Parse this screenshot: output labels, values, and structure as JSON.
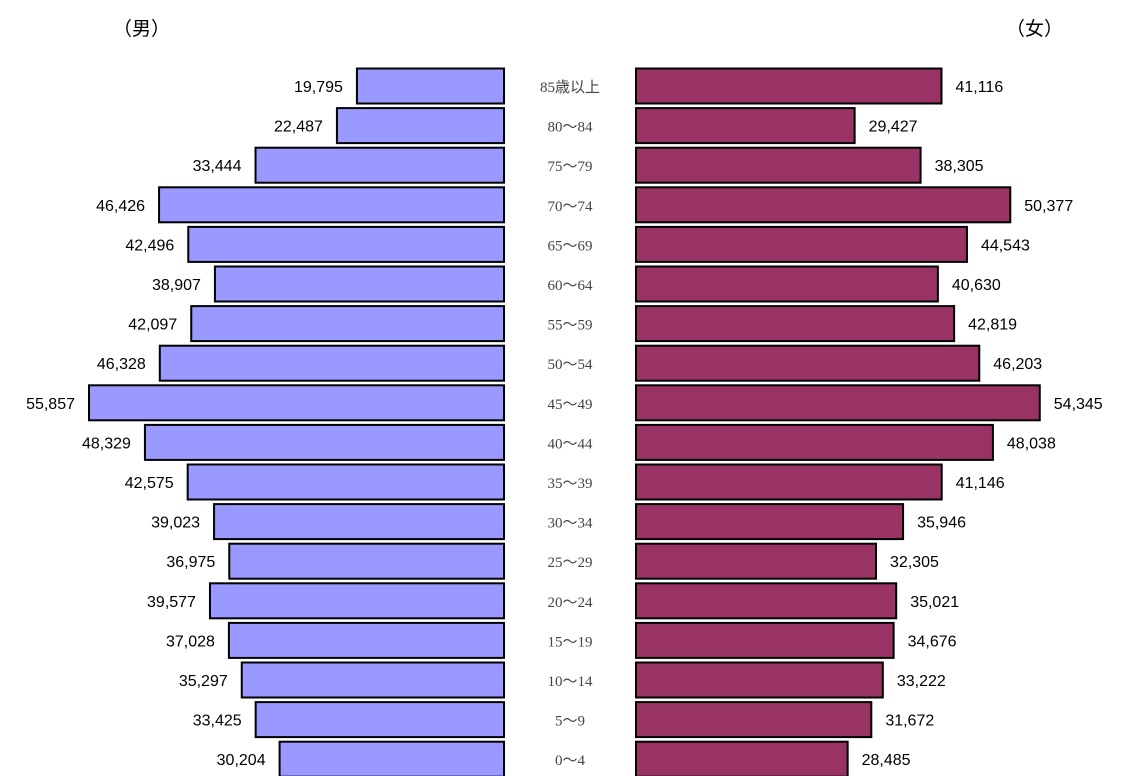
{
  "labels": {
    "male": "（男）",
    "female": "（女）"
  },
  "colors": {
    "male": "#9999ff",
    "female": "#993366",
    "border": "#000000"
  },
  "chart_data": {
    "type": "bar",
    "title": "",
    "categories": [
      "85歳以上",
      "80～84",
      "75～79",
      "70～74",
      "65～69",
      "60～64",
      "55～59",
      "50～54",
      "45～49",
      "40～44",
      "35～39",
      "30～34",
      "25～29",
      "20～24",
      "15～19",
      "10～14",
      "5～9",
      "0～4"
    ],
    "series": [
      {
        "name": "（男）",
        "values": [
          19795,
          22487,
          33444,
          46426,
          42496,
          38907,
          42097,
          46328,
          55857,
          48329,
          42575,
          39023,
          36975,
          39577,
          37028,
          35297,
          33425,
          30204
        ]
      },
      {
        "name": "（女）",
        "values": [
          41116,
          29427,
          38305,
          50377,
          44543,
          40630,
          42819,
          46203,
          54345,
          48038,
          41146,
          35946,
          32305,
          35021,
          34676,
          33222,
          31672,
          28485
        ]
      }
    ],
    "value_labels": {
      "male": [
        "19,795",
        "22,487",
        "33,444",
        "46,426",
        "42,496",
        "38,907",
        "42,097",
        "46,328",
        "55,857",
        "48,329",
        "42,575",
        "39,023",
        "36,975",
        "39,577",
        "37,028",
        "35,297",
        "33,425",
        "30,204"
      ],
      "female": [
        "41,116",
        "29,427",
        "38,305",
        "50,377",
        "44,543",
        "40,630",
        "42,819",
        "46,203",
        "54,345",
        "48,038",
        "41,146",
        "35,946",
        "32,305",
        "35,021",
        "34,676",
        "33,222",
        "31,672",
        "28,485"
      ]
    },
    "orientation": "horizontal-population-pyramid",
    "grid": false,
    "legend": "none"
  }
}
